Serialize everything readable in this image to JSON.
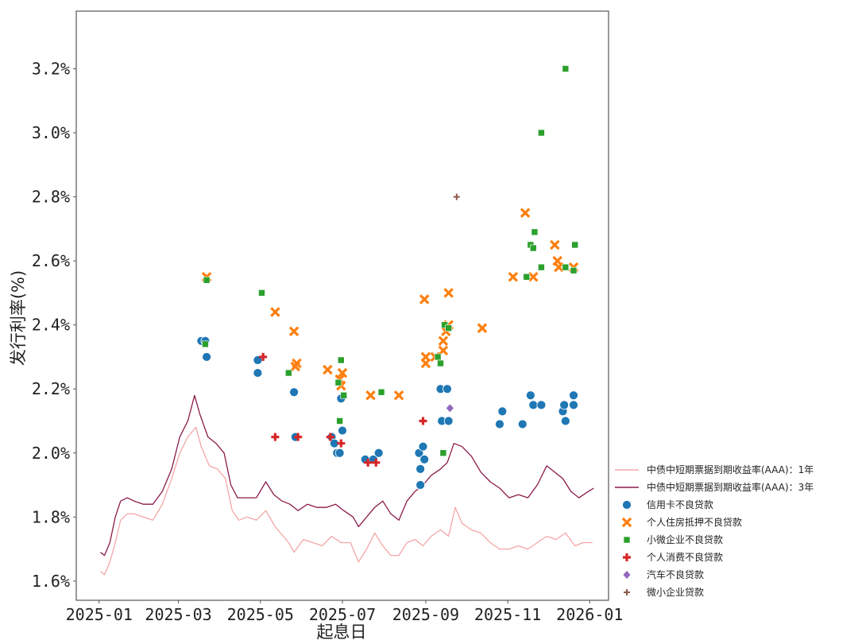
{
  "chart_data": {
    "type": "scatter",
    "xlabel": "起息日",
    "ylabel": "发行利率(%)",
    "ylim": [
      1.54,
      3.38
    ],
    "xlim": [
      "2024-12-15",
      "2026-01-15"
    ],
    "y_ticks": [
      1.6,
      1.8,
      2.0,
      2.2,
      2.4,
      2.6,
      2.8,
      3.0,
      3.2
    ],
    "y_tick_labels": [
      "1.6%",
      "1.8%",
      "2.0%",
      "2.2%",
      "2.4%",
      "2.6%",
      "2.8%",
      "3.0%",
      "3.2%"
    ],
    "x_ticks": [
      "2025-01-01",
      "2025-03-01",
      "2025-05-01",
      "2025-07-01",
      "2025-09-01",
      "2025-11-01",
      "2026-01-01"
    ],
    "x_tick_labels": [
      "2025-01",
      "2025-03",
      "2025-05",
      "2025-07",
      "2025-09",
      "2025-11",
      "2026-01"
    ],
    "grid": false,
    "legend_position": "bottom-right outside",
    "lines": [
      {
        "name": "中债中短期票据到期收益率(AAA)：1年",
        "color": "#f4a6a6",
        "points": [
          [
            "2025-01-02",
            1.63
          ],
          [
            "2025-01-05",
            1.62
          ],
          [
            "2025-01-09",
            1.66
          ],
          [
            "2025-01-13",
            1.72
          ],
          [
            "2025-01-17",
            1.79
          ],
          [
            "2025-01-22",
            1.81
          ],
          [
            "2025-01-27",
            1.81
          ],
          [
            "2025-02-03",
            1.8
          ],
          [
            "2025-02-10",
            1.79
          ],
          [
            "2025-02-17",
            1.84
          ],
          [
            "2025-02-24",
            1.92
          ],
          [
            "2025-03-02",
            2.0
          ],
          [
            "2025-03-08",
            2.05
          ],
          [
            "2025-03-14",
            2.08
          ],
          [
            "2025-03-18",
            2.02
          ],
          [
            "2025-03-24",
            1.96
          ],
          [
            "2025-03-30",
            1.95
          ],
          [
            "2025-04-05",
            1.92
          ],
          [
            "2025-04-10",
            1.82
          ],
          [
            "2025-04-15",
            1.79
          ],
          [
            "2025-04-21",
            1.8
          ],
          [
            "2025-04-28",
            1.79
          ],
          [
            "2025-05-05",
            1.82
          ],
          [
            "2025-05-12",
            1.77
          ],
          [
            "2025-05-18",
            1.74
          ],
          [
            "2025-05-22",
            1.72
          ],
          [
            "2025-05-26",
            1.69
          ],
          [
            "2025-06-02",
            1.73
          ],
          [
            "2025-06-09",
            1.72
          ],
          [
            "2025-06-16",
            1.71
          ],
          [
            "2025-06-23",
            1.74
          ],
          [
            "2025-06-30",
            1.72
          ],
          [
            "2025-07-07",
            1.72
          ],
          [
            "2025-07-13",
            1.66
          ],
          [
            "2025-07-19",
            1.7
          ],
          [
            "2025-07-25",
            1.75
          ],
          [
            "2025-07-31",
            1.71
          ],
          [
            "2025-08-06",
            1.68
          ],
          [
            "2025-08-12",
            1.68
          ],
          [
            "2025-08-18",
            1.72
          ],
          [
            "2025-08-24",
            1.73
          ],
          [
            "2025-08-30",
            1.71
          ],
          [
            "2025-09-05",
            1.74
          ],
          [
            "2025-09-12",
            1.76
          ],
          [
            "2025-09-18",
            1.74
          ],
          [
            "2025-09-23",
            1.83
          ],
          [
            "2025-09-28",
            1.78
          ],
          [
            "2025-10-05",
            1.76
          ],
          [
            "2025-10-12",
            1.75
          ],
          [
            "2025-10-19",
            1.72
          ],
          [
            "2025-10-26",
            1.7
          ],
          [
            "2025-11-02",
            1.7
          ],
          [
            "2025-11-09",
            1.71
          ],
          [
            "2025-11-16",
            1.7
          ],
          [
            "2025-11-23",
            1.72
          ],
          [
            "2025-11-30",
            1.74
          ],
          [
            "2025-12-07",
            1.73
          ],
          [
            "2025-12-14",
            1.75
          ],
          [
            "2025-12-21",
            1.71
          ],
          [
            "2025-12-27",
            1.72
          ],
          [
            "2026-01-03",
            1.72
          ]
        ]
      },
      {
        "name": "中债中短期票据到期收益率(AAA)：3年",
        "color": "#8b1a4a",
        "points": [
          [
            "2025-01-02",
            1.69
          ],
          [
            "2025-01-05",
            1.68
          ],
          [
            "2025-01-09",
            1.72
          ],
          [
            "2025-01-13",
            1.8
          ],
          [
            "2025-01-17",
            1.85
          ],
          [
            "2025-01-22",
            1.86
          ],
          [
            "2025-01-27",
            1.85
          ],
          [
            "2025-02-03",
            1.84
          ],
          [
            "2025-02-10",
            1.84
          ],
          [
            "2025-02-17",
            1.88
          ],
          [
            "2025-02-24",
            1.95
          ],
          [
            "2025-03-02",
            2.05
          ],
          [
            "2025-03-08",
            2.1
          ],
          [
            "2025-03-13",
            2.18
          ],
          [
            "2025-03-17",
            2.12
          ],
          [
            "2025-03-23",
            2.05
          ],
          [
            "2025-03-29",
            2.03
          ],
          [
            "2025-04-04",
            2.0
          ],
          [
            "2025-04-09",
            1.9
          ],
          [
            "2025-04-14",
            1.86
          ],
          [
            "2025-04-21",
            1.86
          ],
          [
            "2025-04-28",
            1.86
          ],
          [
            "2025-05-05",
            1.91
          ],
          [
            "2025-05-11",
            1.87
          ],
          [
            "2025-05-17",
            1.85
          ],
          [
            "2025-05-23",
            1.84
          ],
          [
            "2025-05-29",
            1.82
          ],
          [
            "2025-06-05",
            1.84
          ],
          [
            "2025-06-12",
            1.83
          ],
          [
            "2025-06-19",
            1.83
          ],
          [
            "2025-06-26",
            1.84
          ],
          [
            "2025-07-02",
            1.82
          ],
          [
            "2025-07-09",
            1.8
          ],
          [
            "2025-07-13",
            1.77
          ],
          [
            "2025-07-19",
            1.8
          ],
          [
            "2025-07-25",
            1.83
          ],
          [
            "2025-07-31",
            1.85
          ],
          [
            "2025-08-06",
            1.81
          ],
          [
            "2025-08-12",
            1.79
          ],
          [
            "2025-08-18",
            1.85
          ],
          [
            "2025-08-24",
            1.88
          ],
          [
            "2025-08-30",
            1.9
          ],
          [
            "2025-09-05",
            1.93
          ],
          [
            "2025-09-12",
            1.95
          ],
          [
            "2025-09-17",
            1.97
          ],
          [
            "2025-09-22",
            2.03
          ],
          [
            "2025-09-28",
            2.02
          ],
          [
            "2025-10-05",
            1.99
          ],
          [
            "2025-10-12",
            1.94
          ],
          [
            "2025-10-19",
            1.91
          ],
          [
            "2025-10-26",
            1.89
          ],
          [
            "2025-11-02",
            1.86
          ],
          [
            "2025-11-09",
            1.87
          ],
          [
            "2025-11-16",
            1.86
          ],
          [
            "2025-11-23",
            1.9
          ],
          [
            "2025-11-30",
            1.96
          ],
          [
            "2025-12-06",
            1.94
          ],
          [
            "2025-12-12",
            1.92
          ],
          [
            "2025-12-18",
            1.88
          ],
          [
            "2025-12-24",
            1.86
          ],
          [
            "2025-12-31",
            1.88
          ],
          [
            "2026-01-04",
            1.89
          ]
        ]
      }
    ],
    "series": [
      {
        "name": "信用卡不良贷款",
        "marker": "circle",
        "color": "#1f77b4",
        "points": [
          [
            "2025-03-18",
            2.35
          ],
          [
            "2025-03-21",
            2.35
          ],
          [
            "2025-03-22",
            2.3
          ],
          [
            "2025-04-29",
            2.29
          ],
          [
            "2025-04-29",
            2.25
          ],
          [
            "2025-05-26",
            2.19
          ],
          [
            "2025-05-27",
            2.05
          ],
          [
            "2025-06-23",
            2.05
          ],
          [
            "2025-06-25",
            2.03
          ],
          [
            "2025-06-27",
            2.0
          ],
          [
            "2025-06-29",
            2.0
          ],
          [
            "2025-06-30",
            2.17
          ],
          [
            "2025-07-01",
            2.07
          ],
          [
            "2025-07-18",
            1.98
          ],
          [
            "2025-07-24",
            1.98
          ],
          [
            "2025-07-28",
            2.0
          ],
          [
            "2025-08-27",
            2.0
          ],
          [
            "2025-08-28",
            1.95
          ],
          [
            "2025-08-28",
            1.9
          ],
          [
            "2025-08-30",
            2.02
          ],
          [
            "2025-08-31",
            1.98
          ],
          [
            "2025-09-12",
            2.2
          ],
          [
            "2025-09-13",
            2.1
          ],
          [
            "2025-09-17",
            2.2
          ],
          [
            "2025-09-18",
            2.1
          ],
          [
            "2025-10-28",
            2.13
          ],
          [
            "2025-10-26",
            2.09
          ],
          [
            "2025-11-12",
            2.09
          ],
          [
            "2025-11-18",
            2.18
          ],
          [
            "2025-11-20",
            2.15
          ],
          [
            "2025-11-26",
            2.15
          ],
          [
            "2025-12-12",
            2.13
          ],
          [
            "2025-12-13",
            2.15
          ],
          [
            "2025-12-14",
            2.1
          ],
          [
            "2025-12-20",
            2.18
          ],
          [
            "2025-12-20",
            2.15
          ]
        ]
      },
      {
        "name": "个人住房抵押不良贷款",
        "marker": "x",
        "color": "#ff7f0e",
        "points": [
          [
            "2025-03-22",
            2.55
          ],
          [
            "2025-05-12",
            2.44
          ],
          [
            "2025-05-26",
            2.38
          ],
          [
            "2025-05-28",
            2.28
          ],
          [
            "2025-05-27",
            2.27
          ],
          [
            "2025-06-20",
            2.26
          ],
          [
            "2025-06-29",
            2.23
          ],
          [
            "2025-07-01",
            2.25
          ],
          [
            "2025-06-30",
            2.21
          ],
          [
            "2025-07-22",
            2.18
          ],
          [
            "2025-08-12",
            2.18
          ],
          [
            "2025-08-31",
            2.48
          ],
          [
            "2025-09-01",
            2.3
          ],
          [
            "2025-09-01",
            2.28
          ],
          [
            "2025-09-08",
            2.3
          ],
          [
            "2025-09-14",
            2.32
          ],
          [
            "2025-09-14",
            2.35
          ],
          [
            "2025-09-16",
            2.38
          ],
          [
            "2025-09-18",
            2.4
          ],
          [
            "2025-09-18",
            2.5
          ],
          [
            "2025-10-13",
            2.39
          ],
          [
            "2025-11-05",
            2.55
          ],
          [
            "2025-11-14",
            2.75
          ],
          [
            "2025-11-20",
            2.55
          ],
          [
            "2025-12-06",
            2.65
          ],
          [
            "2025-12-08",
            2.6
          ],
          [
            "2025-12-09",
            2.58
          ],
          [
            "2025-12-20",
            2.58
          ]
        ]
      },
      {
        "name": "小微企业不良贷款",
        "marker": "square",
        "color": "#2ca02c",
        "points": [
          [
            "2025-03-21",
            2.34
          ],
          [
            "2025-03-22",
            2.54
          ],
          [
            "2025-05-02",
            2.5
          ],
          [
            "2025-05-22",
            2.25
          ],
          [
            "2025-06-30",
            2.29
          ],
          [
            "2025-06-28",
            2.22
          ],
          [
            "2025-06-29",
            2.1
          ],
          [
            "2025-07-02",
            2.18
          ],
          [
            "2025-07-30",
            2.19
          ],
          [
            "2025-09-10",
            2.3
          ],
          [
            "2025-09-12",
            2.28
          ],
          [
            "2025-09-15",
            2.4
          ],
          [
            "2025-09-18",
            2.39
          ],
          [
            "2025-09-14",
            2.0
          ],
          [
            "2025-11-15",
            2.55
          ],
          [
            "2025-11-18",
            2.65
          ],
          [
            "2025-11-20",
            2.64
          ],
          [
            "2025-11-21",
            2.69
          ],
          [
            "2025-11-26",
            2.58
          ],
          [
            "2025-11-26",
            3.0
          ],
          [
            "2025-12-14",
            3.2
          ],
          [
            "2025-12-14",
            2.58
          ],
          [
            "2025-12-20",
            2.57
          ],
          [
            "2025-12-21",
            2.65
          ]
        ]
      },
      {
        "name": "个人消费不良贷款",
        "marker": "plus",
        "color": "#d62728",
        "points": [
          [
            "2025-05-03",
            2.3
          ],
          [
            "2025-05-12",
            2.05
          ],
          [
            "2025-05-29",
            2.05
          ],
          [
            "2025-06-22",
            2.05
          ],
          [
            "2025-06-30",
            2.03
          ],
          [
            "2025-07-26",
            1.97
          ],
          [
            "2025-08-30",
            2.1
          ],
          [
            "2025-07-20",
            1.97
          ]
        ]
      },
      {
        "name": "汽车不良贷款",
        "marker": "diamond",
        "color": "#9467bd",
        "points": [
          [
            "2025-09-19",
            2.14
          ]
        ]
      },
      {
        "name": "微小企业贷款",
        "marker": "plus-thin",
        "color": "#8c564b",
        "points": [
          [
            "2025-09-24",
            2.8
          ]
        ]
      }
    ]
  }
}
